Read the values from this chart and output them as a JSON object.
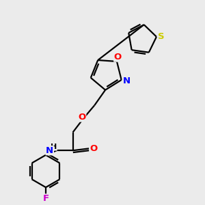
{
  "background_color": "#ebebeb",
  "bond_color": "#000000",
  "atom_colors": {
    "N": "#0000ff",
    "O": "#ff0000",
    "S": "#cccc00",
    "F": "#cc00cc"
  },
  "figsize": [
    3.0,
    3.0
  ],
  "dpi": 100
}
